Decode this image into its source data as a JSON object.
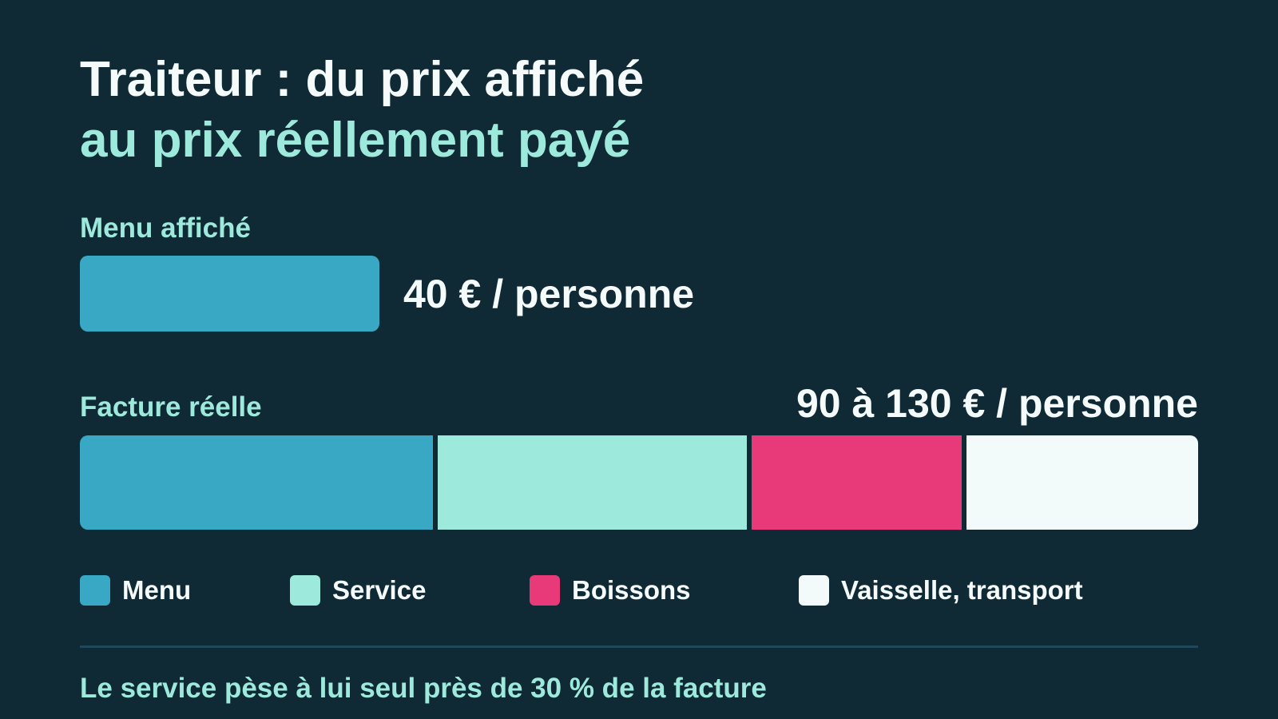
{
  "chart_data": {
    "type": "bar",
    "title": "Traiteur : du prix affiché",
    "subtitle": "au prix réellement payé",
    "displayed": {
      "label": "Menu affiché",
      "value_text": "40 € / personne",
      "value": 40,
      "unit": "€ / personne"
    },
    "actual": {
      "label": "Facture réelle",
      "value_text": "90 à 130 € / personne",
      "range": [
        90,
        130
      ],
      "unit": "€ / personne",
      "segments_share": [
        {
          "name": "Menu",
          "share": 0.32,
          "color": "#38a8c4"
        },
        {
          "name": "Service",
          "share": 0.28,
          "color": "#9de9dc"
        },
        {
          "name": "Boissons",
          "share": 0.19,
          "color": "#e83a78"
        },
        {
          "name": "Vaisselle, transport",
          "share": 0.21,
          "color": "#f3fafa"
        }
      ]
    },
    "legend_position": "bottom",
    "footnote": "Le service pèse à lui seul près de 30 % de la facture"
  }
}
